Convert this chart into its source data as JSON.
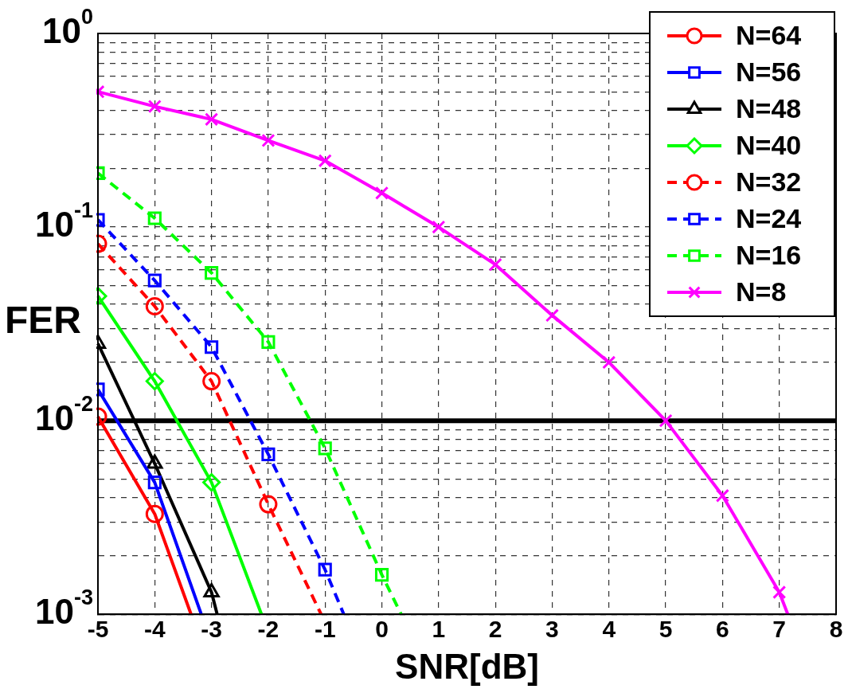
{
  "chart_data": {
    "type": "line",
    "xlabel": "SNR[dB]",
    "ylabel": "FER",
    "log": "y",
    "grid": true,
    "legend": "top right",
    "xlim": [
      -5,
      8
    ],
    "xticks": [
      -5,
      -4,
      -3,
      -2,
      -1,
      0,
      1,
      2,
      3,
      4,
      5,
      6,
      7,
      8
    ],
    "ylim": [
      0.001,
      1
    ],
    "yticks": [
      {
        "value": 0.001,
        "label": "10$^{-3}$"
      },
      {
        "value": 0.002,
        "label": null
      },
      {
        "value": 0.003,
        "label": null
      },
      {
        "value": 0.004,
        "label": null
      },
      {
        "value": 0.005,
        "label": null
      },
      {
        "value": 0.006,
        "label": null
      },
      {
        "value": 0.007,
        "label": null
      },
      {
        "value": 0.008,
        "label": null
      },
      {
        "value": 0.009,
        "label": null
      },
      {
        "value": 0.01,
        "label": "10$^{-2}$"
      },
      {
        "value": 0.02,
        "label": null
      },
      {
        "value": 0.03,
        "label": null
      },
      {
        "value": 0.04,
        "label": null
      },
      {
        "value": 0.05,
        "label": null
      },
      {
        "value": 0.06,
        "label": null
      },
      {
        "value": 0.07,
        "label": null
      },
      {
        "value": 0.08,
        "label": null
      },
      {
        "value": 0.09,
        "label": null
      },
      {
        "value": 0.1,
        "label": "10$^{-1}$"
      },
      {
        "value": 0.2,
        "label": null
      },
      {
        "value": 0.3,
        "label": null
      },
      {
        "value": 0.4,
        "label": null
      },
      {
        "value": 0.5,
        "label": null
      },
      {
        "value": 0.6,
        "label": null
      },
      {
        "value": 0.7,
        "label": null
      },
      {
        "value": 0.8,
        "label": null
      },
      {
        "value": 0.9,
        "label": null
      },
      {
        "value": 1,
        "label": "10$^{0}$"
      }
    ],
    "ref_lines": [
      {
        "axis": "y",
        "value": 0.01,
        "label": null,
        "color": "#000000",
        "line_style": "solid"
      }
    ],
    "series": [
      {
        "name": "N=64",
        "color": "#ff0000",
        "marker": "circle",
        "line_style": "solid",
        "x": [
          -5,
          -4,
          -3.36
        ],
        "values": [
          0.0105,
          0.0033,
          0.001
        ]
      },
      {
        "name": "N=56",
        "color": "#0000ff",
        "marker": "square",
        "line_style": "solid",
        "x": [
          -5,
          -4,
          -3.18
        ],
        "values": [
          0.0145,
          0.0048,
          0.001
        ]
      },
      {
        "name": "N=48",
        "color": "#000000",
        "marker": "triangle",
        "line_style": "solid",
        "x": [
          -5,
          -4,
          -3,
          -2.9
        ],
        "values": [
          0.025,
          0.006,
          0.0013,
          0.001
        ]
      },
      {
        "name": "N=40",
        "color": "#00ff00",
        "marker": "diamond",
        "line_style": "solid",
        "x": [
          -5,
          -4,
          -3,
          -2.12
        ],
        "values": [
          0.044,
          0.016,
          0.0048,
          0.001
        ]
      },
      {
        "name": "N=32",
        "color": "#ff0000",
        "marker": "circle",
        "line_style": "dashed",
        "x": [
          -5,
          -4,
          -3,
          -2,
          -1.07
        ],
        "values": [
          0.082,
          0.039,
          0.016,
          0.0037,
          0.001
        ]
      },
      {
        "name": "N=24",
        "color": "#0000ff",
        "marker": "square",
        "line_style": "dashed",
        "x": [
          -5,
          -4,
          -3,
          -2,
          -1,
          -0.67
        ],
        "values": [
          0.109,
          0.053,
          0.024,
          0.0067,
          0.0017,
          0.001
        ]
      },
      {
        "name": "N=16",
        "color": "#00ff00",
        "marker": "square",
        "line_style": "dashed",
        "x": [
          -5,
          -4,
          -3,
          -2,
          -1,
          0,
          0.34
        ],
        "values": [
          0.19,
          0.111,
          0.058,
          0.0255,
          0.0072,
          0.0016,
          0.001
        ]
      },
      {
        "name": "N=8",
        "color": "#ff00ff",
        "marker": "cross",
        "line_style": "solid",
        "x": [
          -5,
          -4,
          -3,
          -2,
          -1,
          0,
          1,
          2,
          3,
          4,
          5,
          6,
          7,
          7.15
        ],
        "values": [
          0.5,
          0.42,
          0.36,
          0.28,
          0.22,
          0.15,
          0.1,
          0.064,
          0.035,
          0.02,
          0.01,
          0.0041,
          0.0013,
          0.001
        ]
      }
    ]
  }
}
